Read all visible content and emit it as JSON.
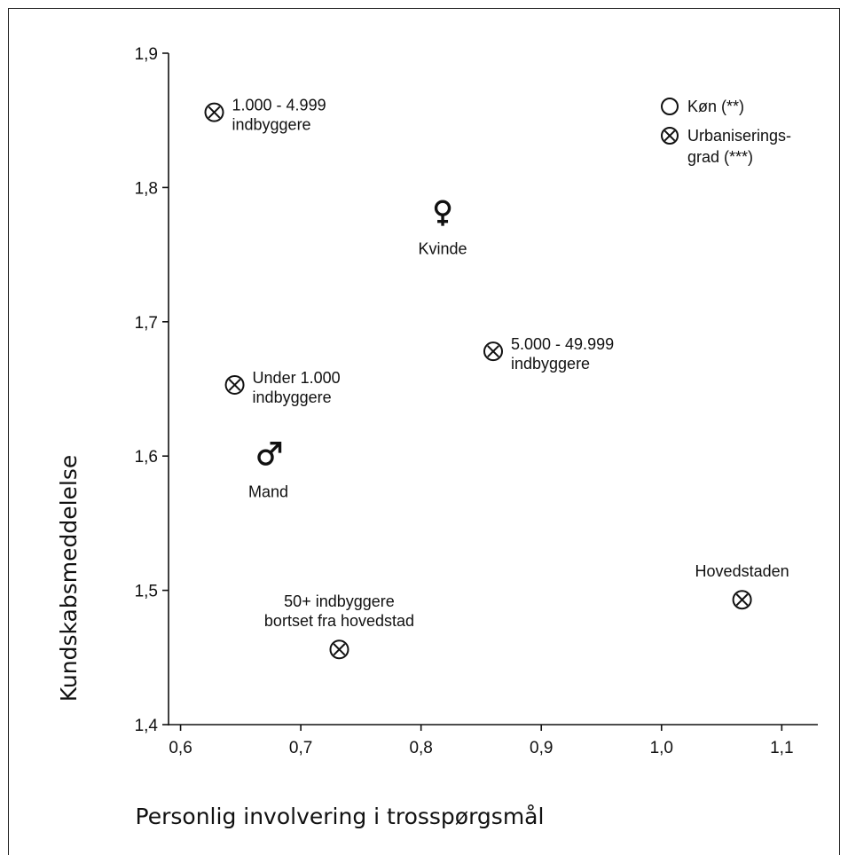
{
  "chart_data": {
    "type": "scatter",
    "xlabel": "Personlig involvering i trosspørgsmål",
    "ylabel": "Kundskabsmeddelelse",
    "xlim": [
      0.59,
      1.13
    ],
    "ylim": [
      1.4,
      1.9
    ],
    "x_ticks": [
      0.6,
      0.7,
      0.8,
      0.9,
      1.0,
      1.1
    ],
    "x_tick_labels": [
      "0,6",
      "0,7",
      "0,8",
      "0,9",
      "1,0",
      "1,1"
    ],
    "y_ticks": [
      1.4,
      1.5,
      1.6,
      1.7,
      1.8,
      1.9
    ],
    "y_tick_labels": [
      "1,4",
      "1,5",
      "1,6",
      "1,7",
      "1,8",
      "1,9"
    ],
    "grid": false,
    "legend_position": "top-right",
    "legend": [
      {
        "marker": "circle",
        "label": "Køn (**)"
      },
      {
        "marker": "circle-cross",
        "label": "Urbaniserings-",
        "label2": "grad (***)"
      }
    ],
    "points": [
      {
        "x": 0.628,
        "y": 1.856,
        "marker": "circle-cross",
        "label": [
          "1.000 - 4.999",
          "indbyggere"
        ],
        "label_pos": "right"
      },
      {
        "x": 0.645,
        "y": 1.653,
        "marker": "circle-cross",
        "label": [
          "Under 1.000",
          "indbyggere"
        ],
        "label_pos": "right"
      },
      {
        "x": 0.86,
        "y": 1.678,
        "marker": "circle-cross",
        "label": [
          "5.000 - 49.999",
          "indbyggere"
        ],
        "label_pos": "right"
      },
      {
        "x": 0.732,
        "y": 1.456,
        "marker": "circle-cross",
        "label": [
          "50+ indbyggere",
          "bortset fra hovedstad"
        ],
        "label_pos": "above"
      },
      {
        "x": 1.067,
        "y": 1.493,
        "marker": "circle-cross",
        "label": [
          "Hovedstaden"
        ],
        "label_pos": "above"
      },
      {
        "x": 0.818,
        "y": 1.782,
        "marker": "female",
        "label": [
          "Kvinde"
        ],
        "label_pos": "below"
      },
      {
        "x": 0.673,
        "y": 1.601,
        "marker": "male",
        "label": [
          "Mand"
        ],
        "label_pos": "below"
      }
    ]
  }
}
